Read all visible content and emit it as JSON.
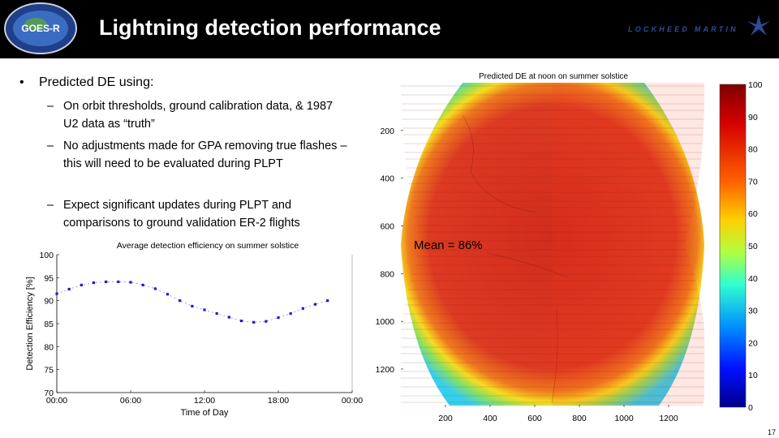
{
  "slide": {
    "title": "Lightning detection performance",
    "page_number": "17",
    "logo_left_text": "GOES-R",
    "logo_right_text": "LOCKHEED MARTIN"
  },
  "bullets": {
    "main": "Predicted DE using:",
    "subs": [
      "On orbit thresholds, ground calibration data, & 1987 U2 data as “truth”",
      "No adjustments made for GPA removing true flashes – this will need to be evaluated during PLPT",
      "Expect significant updates during PLPT and comparisons to ground validation ER-2 flights"
    ]
  },
  "chart_data": [
    {
      "type": "line",
      "title": "Average detection efficiency on summer solstice",
      "xlabel": "Time of Day",
      "ylabel": "Detection Efficiency [%]",
      "x_ticks": [
        "00:00",
        "06:00",
        "12:00",
        "18:00",
        "00:00"
      ],
      "y_ticks": [
        "100",
        "95",
        "90",
        "85",
        "80",
        "75",
        "70"
      ],
      "xlim": [
        0,
        24
      ],
      "ylim": [
        70,
        100
      ],
      "series": [
        {
          "name": "Average DE",
          "color": "#1a1ad8",
          "x": [
            0,
            1,
            2,
            3,
            4,
            5,
            6,
            7,
            8,
            9,
            10,
            11,
            12,
            13,
            14,
            15,
            16,
            17,
            18,
            19,
            20,
            21,
            22
          ],
          "values": [
            91.5,
            92.5,
            93.4,
            93.9,
            94.1,
            94.1,
            94.0,
            93.4,
            92.6,
            91.4,
            90.0,
            88.8,
            88.0,
            87.2,
            86.4,
            85.6,
            85.3,
            85.5,
            86.3,
            87.2,
            88.3,
            89.2,
            90.0
          ]
        }
      ]
    },
    {
      "type": "heatmap",
      "title": "Predicted DE at noon on summer solstice",
      "x_ticks": [
        "200",
        "400",
        "600",
        "800",
        "1000",
        "1200"
      ],
      "y_ticks": [
        "200",
        "400",
        "600",
        "800",
        "1000",
        "1200"
      ],
      "colorbar_ticks": [
        "100",
        "90",
        "80",
        "70",
        "60",
        "50",
        "40",
        "30",
        "20",
        "10",
        "0"
      ],
      "colorbar_range": [
        0,
        100
      ],
      "annotation": "Mean = 86%",
      "field_colors": {
        "center_left": "#d3311f",
        "center_right": "#e13d27",
        "edge": "#35d0ee"
      }
    }
  ]
}
